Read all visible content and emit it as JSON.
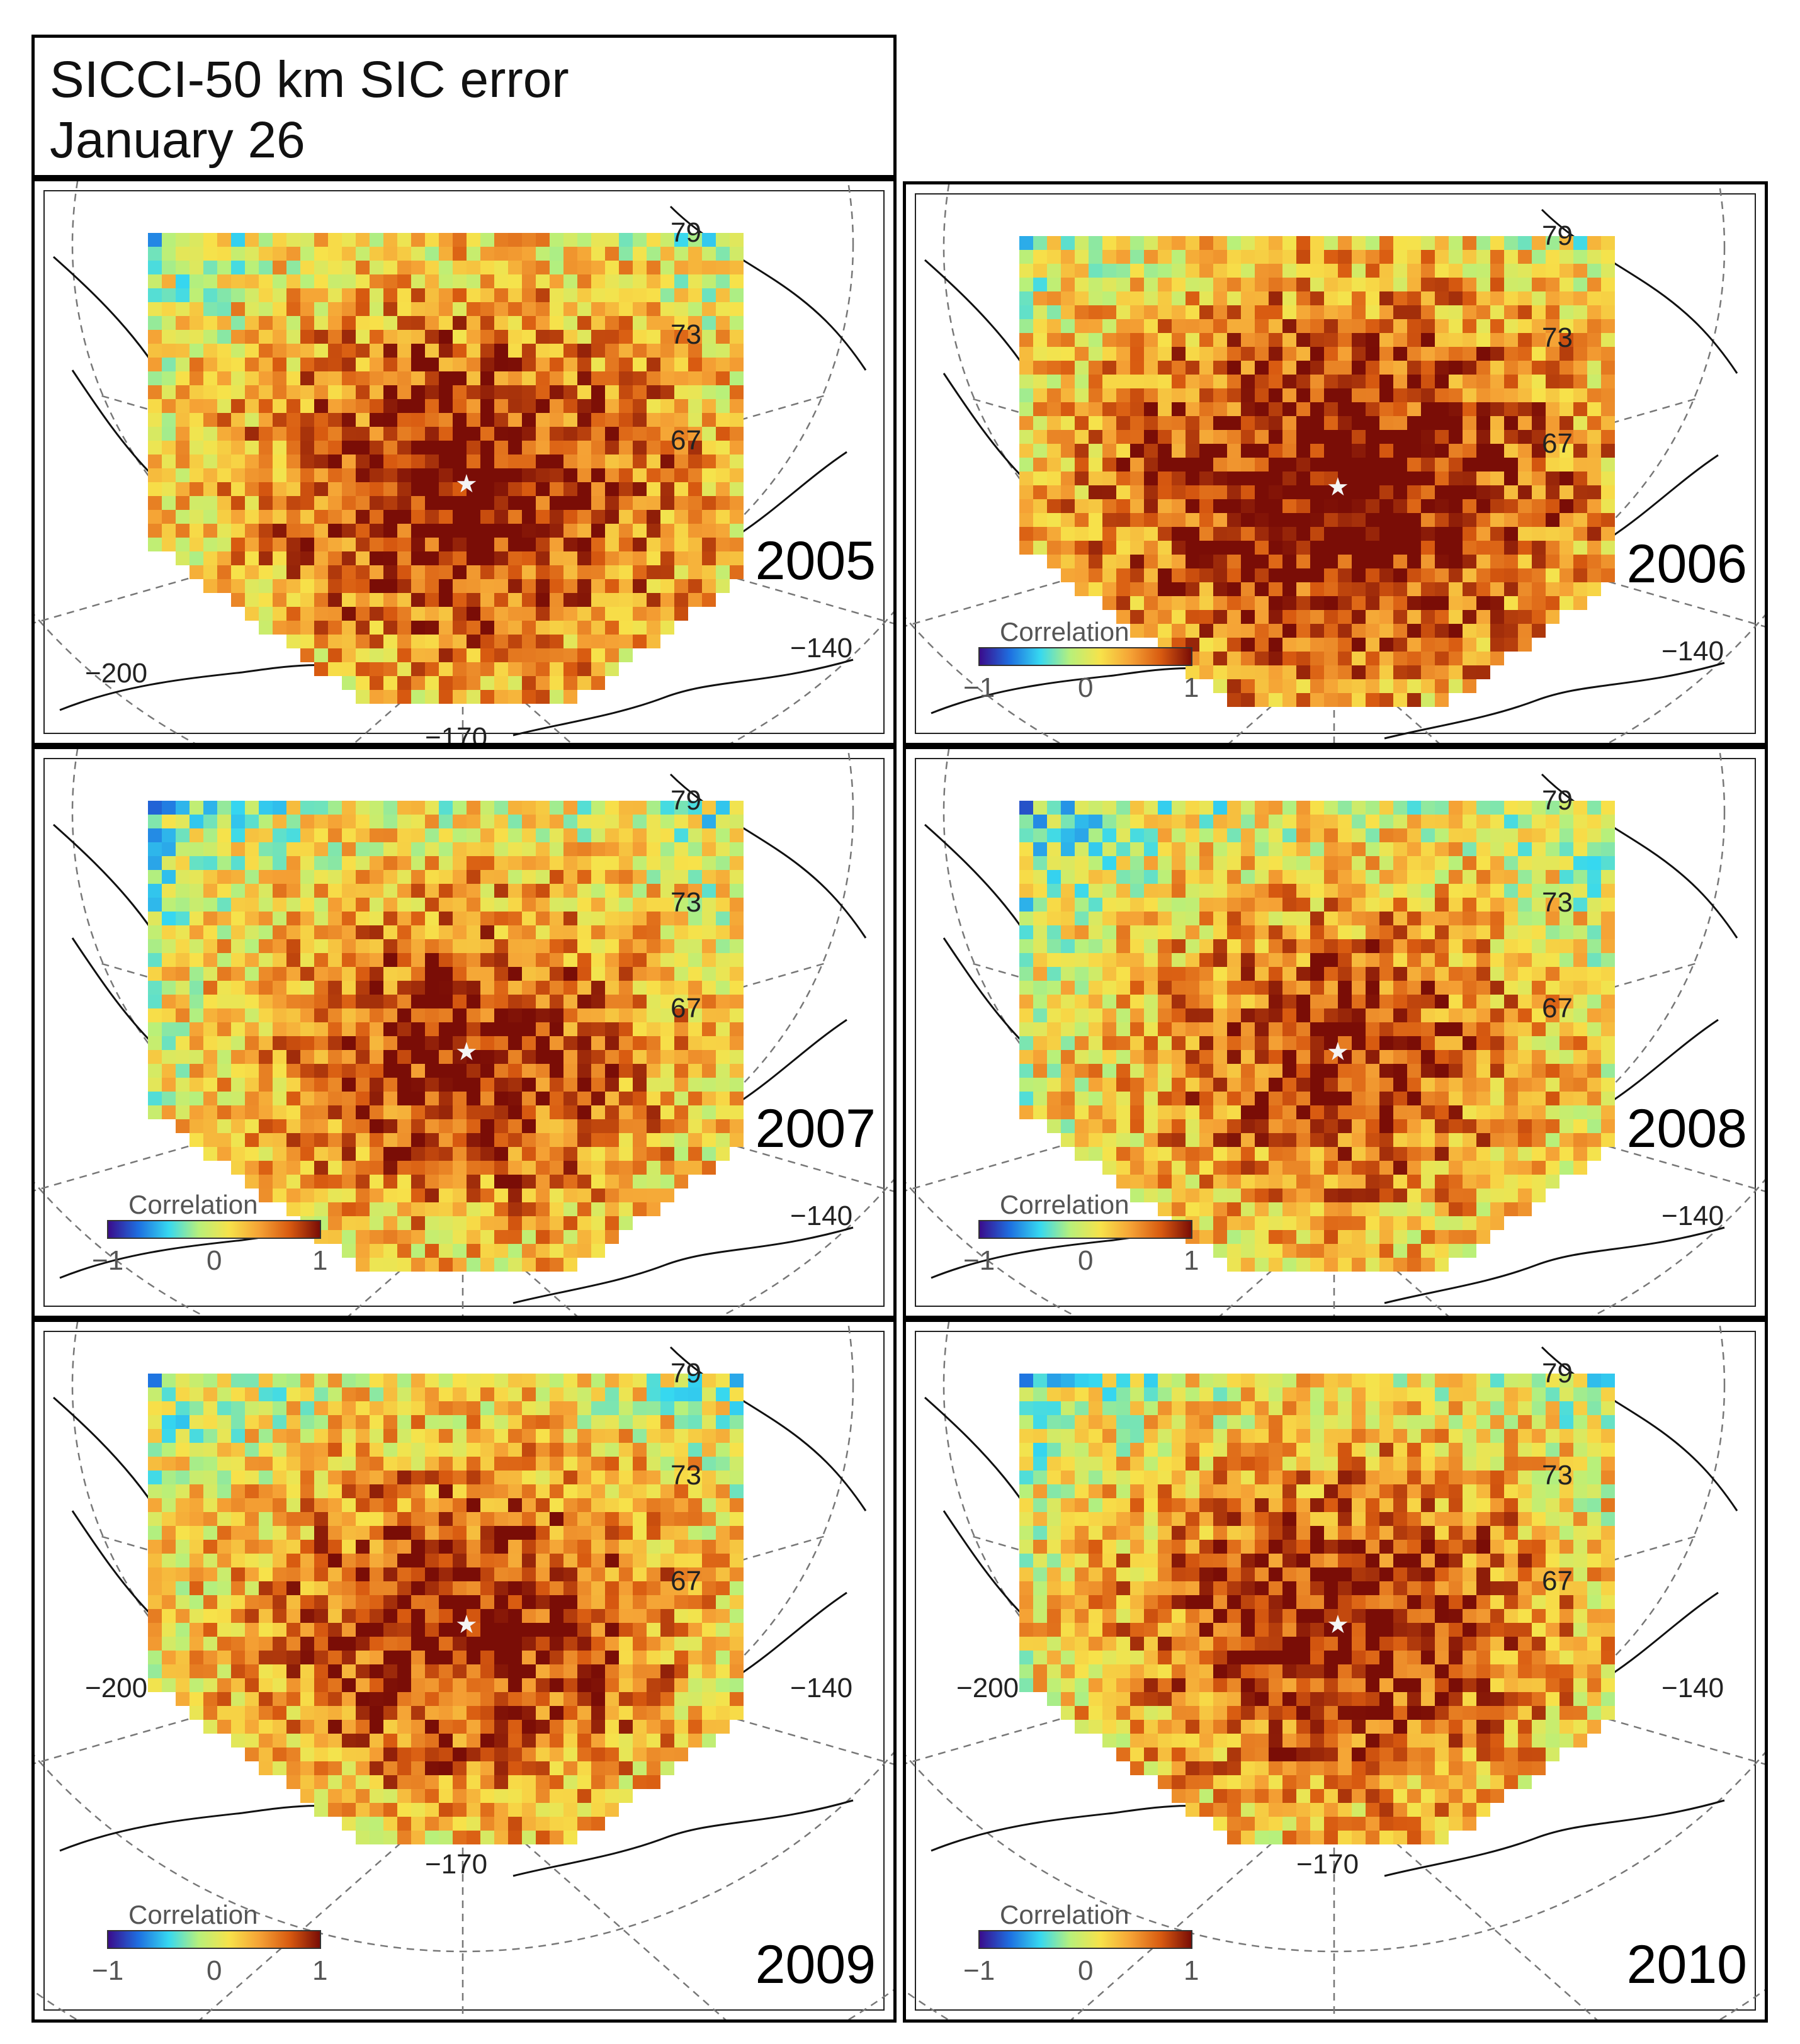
{
  "title": {
    "line1": "SICCI-50 km SIC error",
    "line2": "January 26"
  },
  "colors": {
    "colormap": [
      "#3a0c8c",
      "#1e6fe0",
      "#36d8f0",
      "#b8f07a",
      "#f7e24a",
      "#f5a235",
      "#d85a10",
      "#7a0d06"
    ]
  },
  "legend": {
    "title": "Correlation",
    "min": "−1",
    "mid": "0",
    "max": "1"
  },
  "panels": [
    {
      "year": "2005",
      "lat_labels": [
        "79",
        "73",
        "67"
      ],
      "lon_labels": [
        "−200",
        "−140",
        "−170"
      ],
      "has_legend": false
    },
    {
      "year": "2006",
      "lat_labels": [
        "79",
        "73",
        "67"
      ],
      "lon_labels": [
        "−140"
      ],
      "has_legend": true
    },
    {
      "year": "2007",
      "lat_labels": [
        "79",
        "73",
        "67"
      ],
      "lon_labels": [
        "−140"
      ],
      "has_legend": true
    },
    {
      "year": "2008",
      "lat_labels": [
        "79",
        "73",
        "67"
      ],
      "lon_labels": [
        "−140"
      ],
      "has_legend": true
    },
    {
      "year": "2009",
      "lat_labels": [
        "79",
        "73",
        "67"
      ],
      "lon_labels": [
        "−200",
        "−140",
        "−170"
      ],
      "has_legend": true
    },
    {
      "year": "2010",
      "lat_labels": [
        "79",
        "73",
        "67"
      ],
      "lon_labels": [
        "−200",
        "−140",
        "−170"
      ],
      "has_legend": true
    }
  ]
}
